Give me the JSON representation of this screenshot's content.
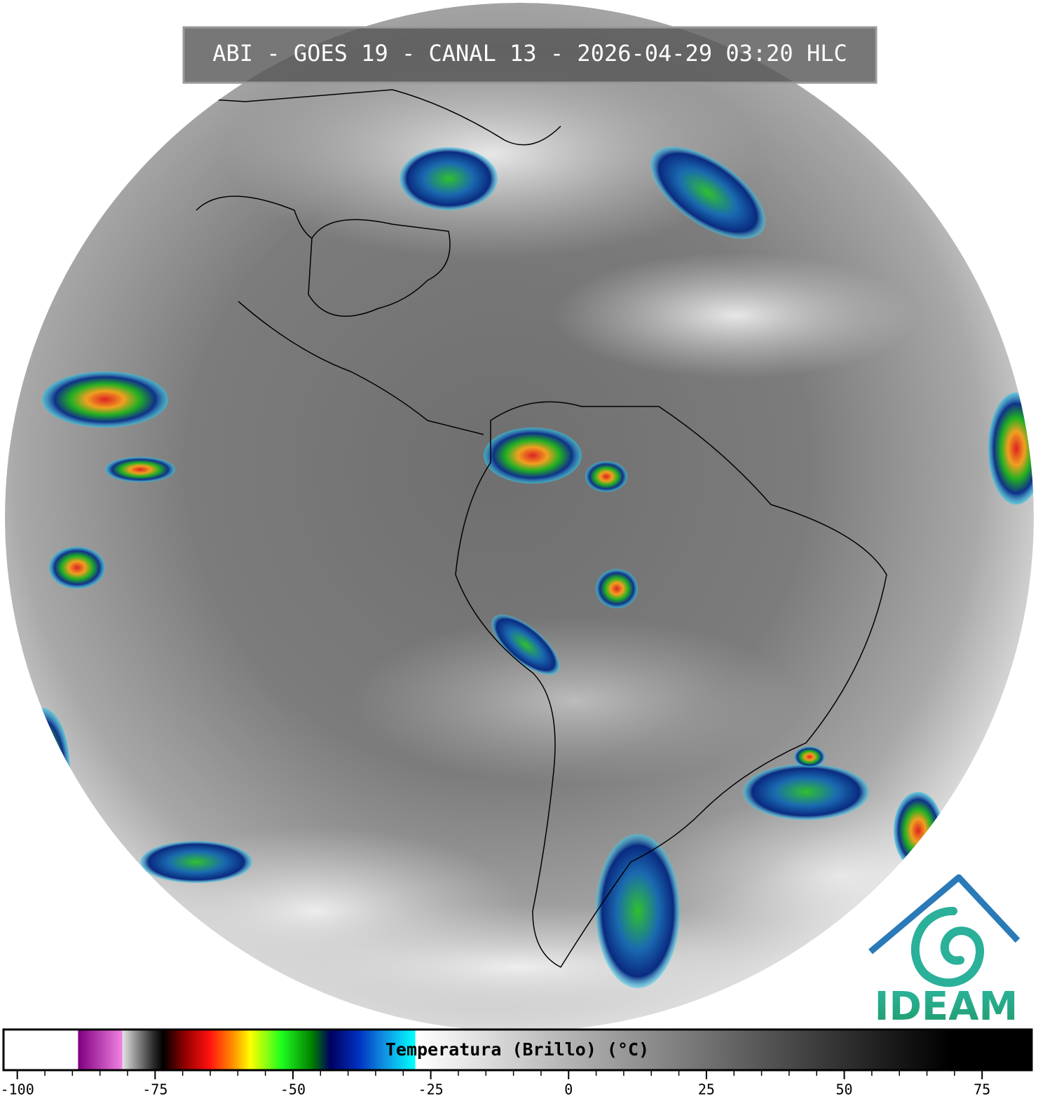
{
  "title": "ABI - GOES 19 - CANAL 13 - 2026-04-29 03:20 HLC",
  "logo": "IDEAM",
  "colorbar": {
    "label": "Temperatura (Brillo) (°C)",
    "lim": [
      -102.5,
      84
    ],
    "ticks": [
      -100,
      -75,
      -50,
      -25,
      0,
      25,
      50,
      75
    ]
  }
}
